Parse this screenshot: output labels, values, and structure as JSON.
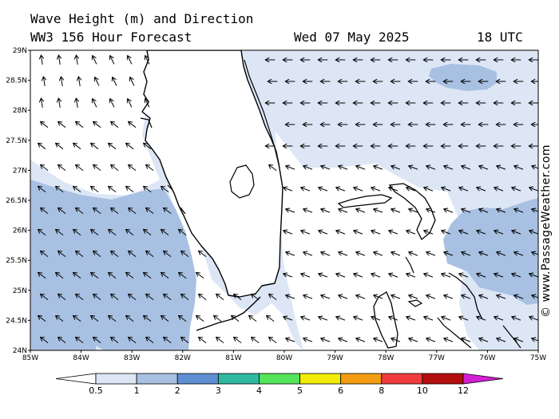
{
  "header": {
    "title": "Wave Height (m) and Direction",
    "model": "WW3 156 Hour Forecast",
    "date": "Wed 07 May 2025",
    "time": "18 UTC"
  },
  "credit": "© www.PassageWeather.com",
  "axes": {
    "lat_labels": [
      "29N",
      "28.5N",
      "28N",
      "27.5N",
      "27N",
      "26.5N",
      "26N",
      "25.5N",
      "25N",
      "24.5N",
      "24N"
    ],
    "lon_labels": [
      "85W",
      "84W",
      "83W",
      "82W",
      "81W",
      "80W",
      "79W",
      "78W",
      "77W",
      "76W",
      "75W"
    ],
    "lat_range": [
      24,
      29
    ],
    "lon_range": [
      -85,
      -75
    ]
  },
  "legend": {
    "labels": [
      "0.5",
      "1",
      "2",
      "3",
      "4",
      "5",
      "6",
      "8",
      "10",
      "12"
    ],
    "colors": [
      "#ffffff",
      "#dce6f5",
      "#a8c0e2",
      "#5f8fd2",
      "#2fb9a0",
      "#55e35a",
      "#f2ec05",
      "#f39c12",
      "#ef3b3b",
      "#b30d0d",
      "#d31fd3"
    ]
  },
  "colors": {
    "land": "#ffffff",
    "sea_calm": "#ffffff",
    "sea_light": "#dce6f5",
    "sea_moderate": "#a8c0e2",
    "coast": "#000000"
  }
}
